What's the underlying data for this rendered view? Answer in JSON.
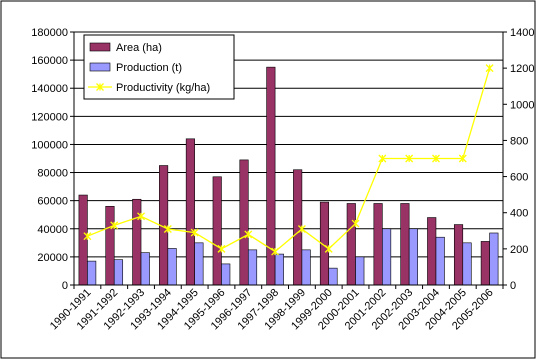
{
  "chart_data": {
    "type": "bar",
    "categories": [
      "1990-1991",
      "1991-1992",
      "1992-1993",
      "1993-1994",
      "1994-1995",
      "1995-1996",
      "1996-1997",
      "1997-1998",
      "1998-1999",
      "1999-2000",
      "2000-2001",
      "2001-2002",
      "2002-2003",
      "2003-2004",
      "2004-2005",
      "2005-2006"
    ],
    "series": [
      {
        "name": "Area (ha)",
        "type": "bar",
        "axis": "left",
        "color": "#993366",
        "values": [
          64000,
          56000,
          61000,
          85000,
          104000,
          77000,
          89000,
          155000,
          82000,
          59000,
          58000,
          58000,
          58000,
          48000,
          43000,
          31000
        ]
      },
      {
        "name": "Production (t)",
        "type": "bar",
        "axis": "left",
        "color": "#9999ff",
        "values": [
          17000,
          18000,
          23000,
          26000,
          30000,
          15000,
          25000,
          22000,
          25000,
          12000,
          20000,
          40000,
          40000,
          34000,
          30000,
          37000
        ]
      },
      {
        "name": "Productivity (kg/ha)",
        "type": "line",
        "axis": "right",
        "color": "#ffff00",
        "values": [
          270,
          330,
          380,
          310,
          290,
          200,
          280,
          185,
          310,
          200,
          340,
          700,
          700,
          700,
          700,
          1200
        ]
      }
    ],
    "ylim": [
      0,
      180000
    ],
    "yticks": [
      "0",
      "20000",
      "40000",
      "60000",
      "80000",
      "100000",
      "120000",
      "140000",
      "160000",
      "180000"
    ],
    "y2lim": [
      0,
      1400
    ],
    "y2ticks": [
      "0",
      "200",
      "400",
      "600",
      "800",
      "1000",
      "1200",
      "1400"
    ],
    "legend_position": "top-left",
    "grid": "horizontal"
  }
}
